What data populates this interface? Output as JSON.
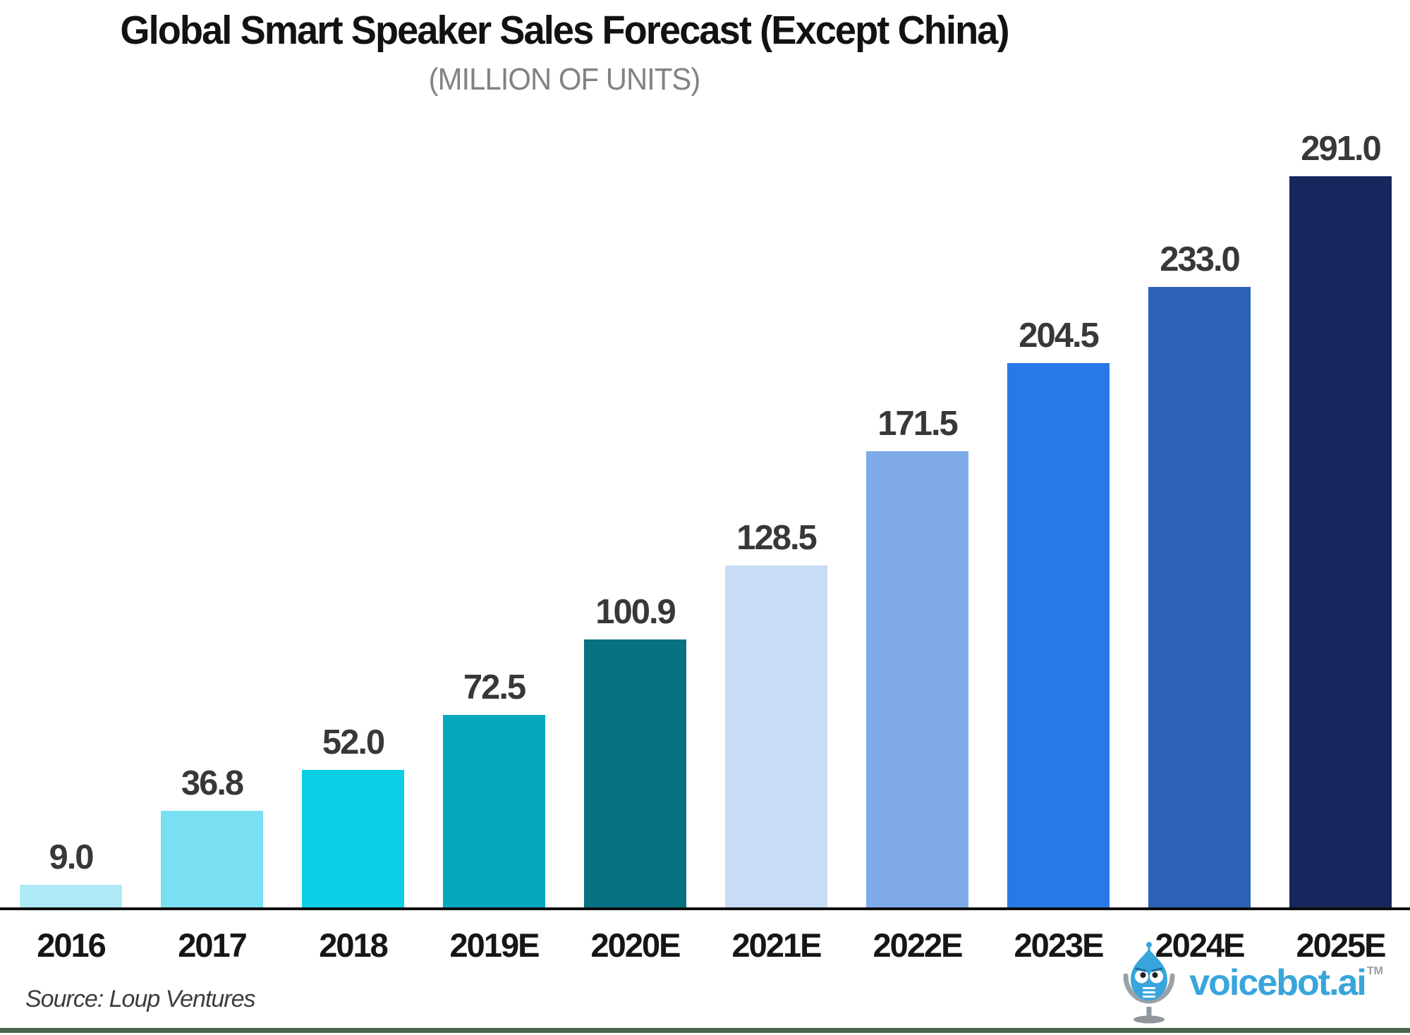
{
  "header": {
    "title": "Global Smart Speaker Sales Forecast (Except China)",
    "subtitle": "(MILLION OF UNITS)"
  },
  "chart_data": {
    "type": "bar",
    "title": "Global Smart Speaker Sales Forecast (Except China)",
    "subtitle": "(MILLION OF UNITS)",
    "categories": [
      "2016",
      "2017",
      "2018",
      "2019E",
      "2020E",
      "2021E",
      "2022E",
      "2023E",
      "2024E",
      "2025E"
    ],
    "values": [
      9.0,
      36.8,
      52.0,
      72.5,
      100.9,
      128.5,
      171.5,
      204.5,
      233.0,
      291.0
    ],
    "value_labels": [
      "9.0",
      "36.8",
      "52.0",
      "72.5",
      "100.9",
      "128.5",
      "171.5",
      "204.5",
      "233.0",
      "291.0"
    ],
    "bar_colors": [
      "#aeeaf5",
      "#79dff2",
      "#0ccfe6",
      "#07a8bc",
      "#077181",
      "#c8dcf5",
      "#7face9",
      "#2879e6",
      "#2b62b7",
      "#17265c"
    ],
    "xlabel": "",
    "ylabel": "Million of units",
    "ylim": [
      0,
      291
    ],
    "grid": false,
    "legend": false,
    "data_labels": true,
    "axis_line_color": "#0d0d0d"
  },
  "footer": {
    "source": "Source: Loup Ventures",
    "brand": "voicebot.ai",
    "trademark": "TM",
    "brand_color": "#38a5dc",
    "divider_color": "#4b664e"
  }
}
